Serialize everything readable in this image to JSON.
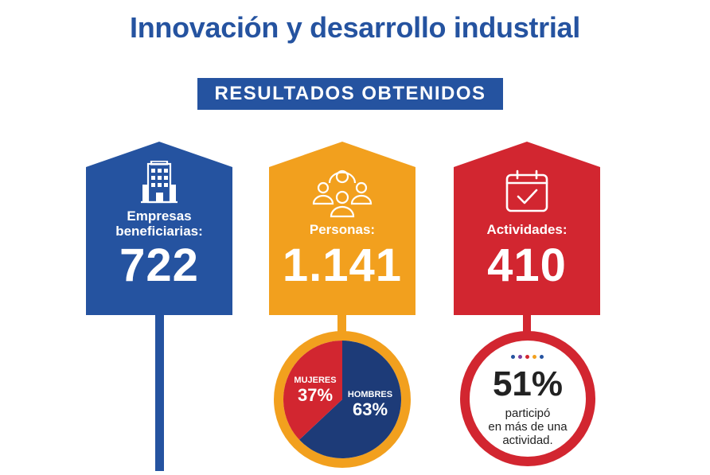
{
  "title": "Innovación y desarrollo industrial",
  "banner": "RESULTADOS OBTENIDOS",
  "colors": {
    "blue": "#2553a0",
    "orange": "#f2a01e",
    "red": "#d22630",
    "navy": "#1d3b78"
  },
  "cards": [
    {
      "label_line1": "Empresas",
      "label_line2": "beneficiarias:",
      "value": "722",
      "icon": "building-icon"
    },
    {
      "label_line1": "Personas:",
      "value": "1.141",
      "icon": "people-group-icon"
    },
    {
      "label_line1": "Actividades:",
      "value": "410",
      "icon": "calendar-check-icon"
    }
  ],
  "gender": {
    "women_label": "MUJERES",
    "women_value": "37%",
    "women_fraction": 0.37,
    "men_label": "HOMBRES",
    "men_value": "63%",
    "men_fraction": 0.63
  },
  "participation": {
    "value": "51%",
    "line1": "participó",
    "line2": "en más de una",
    "line3": "actividad.",
    "dot_colors": [
      "#2553a0",
      "#7a3fa0",
      "#d22630",
      "#f2a01e",
      "#2553a0"
    ]
  }
}
